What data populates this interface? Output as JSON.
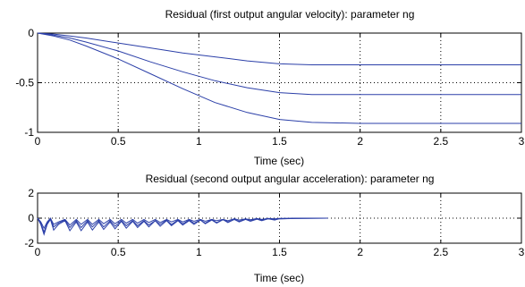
{
  "chart_data": [
    {
      "type": "line",
      "title": "Residual (first output angular velocity): parameter ng",
      "xlabel": "Time (sec)",
      "ylabel": "",
      "xlim": [
        0,
        3
      ],
      "ylim": [
        -1,
        0
      ],
      "xticks": [
        0,
        0.5,
        1,
        1.5,
        2,
        2.5,
        3
      ],
      "xtick_labels": [
        "0",
        "0.5",
        "1",
        "1.5",
        "2",
        "2.5",
        "3"
      ],
      "yticks": [
        -1,
        -0.5,
        0
      ],
      "ytick_labels": [
        "-1",
        "-0.5",
        "0"
      ],
      "grid": true,
      "line_color": "#2b3fa8",
      "series": [
        {
          "x": [
            0,
            0.1,
            0.2,
            0.3,
            0.5,
            0.7,
            0.9,
            1.1,
            1.3,
            1.5,
            1.7,
            2.0,
            2.5,
            3.0
          ],
          "y": [
            0,
            -0.01,
            -0.03,
            -0.05,
            -0.1,
            -0.15,
            -0.2,
            -0.24,
            -0.28,
            -0.31,
            -0.32,
            -0.32,
            -0.32,
            -0.32
          ]
        },
        {
          "x": [
            0,
            0.1,
            0.2,
            0.3,
            0.5,
            0.7,
            0.9,
            1.1,
            1.3,
            1.5,
            1.7,
            2.0,
            2.5,
            3.0
          ],
          "y": [
            0,
            -0.02,
            -0.05,
            -0.09,
            -0.18,
            -0.29,
            -0.39,
            -0.48,
            -0.55,
            -0.6,
            -0.62,
            -0.62,
            -0.62,
            -0.62
          ]
        },
        {
          "x": [
            0,
            0.1,
            0.2,
            0.3,
            0.5,
            0.7,
            0.9,
            1.1,
            1.3,
            1.5,
            1.7,
            2.0,
            2.5,
            3.0
          ],
          "y": [
            0,
            -0.03,
            -0.07,
            -0.13,
            -0.26,
            -0.41,
            -0.56,
            -0.7,
            -0.8,
            -0.87,
            -0.9,
            -0.91,
            -0.91,
            -0.91
          ]
        }
      ]
    },
    {
      "type": "line",
      "title": "Residual (second output  angular acceleration): parameter ng",
      "xlabel": "Time (sec)",
      "ylabel": "",
      "xlim": [
        0,
        3
      ],
      "ylim": [
        -2,
        2
      ],
      "xticks": [
        0,
        0.5,
        1,
        1.5,
        2,
        2.5,
        3
      ],
      "xtick_labels": [
        "0",
        "0.5",
        "1",
        "1.5",
        "2",
        "2.5",
        "3"
      ],
      "yticks": [
        -2,
        0,
        2
      ],
      "ytick_labels": [
        "-2",
        "0",
        "2"
      ],
      "grid": true,
      "line_color": "#2b3fa8",
      "series": [
        {
          "x": [
            0,
            0.02,
            0.04,
            0.06,
            0.08,
            0.1,
            0.13,
            0.17,
            0.2,
            0.24,
            0.27,
            0.31,
            0.34,
            0.38,
            0.41,
            0.45,
            0.48,
            0.52,
            0.55,
            0.59,
            0.62,
            0.66,
            0.69,
            0.73,
            0.76,
            0.8,
            0.83,
            0.87,
            0.9,
            0.94,
            0.97,
            1.01,
            1.04,
            1.08,
            1.11,
            1.15,
            1.18,
            1.22,
            1.25,
            1.29,
            1.32,
            1.36,
            1.39,
            1.43,
            1.47,
            1.5,
            1.6,
            1.8
          ],
          "y": [
            0,
            -0.3,
            -0.8,
            -0.3,
            0.0,
            -0.5,
            -0.3,
            -0.1,
            -0.55,
            -0.1,
            -0.5,
            -0.1,
            -0.5,
            -0.1,
            -0.45,
            -0.1,
            -0.45,
            -0.1,
            -0.4,
            -0.1,
            -0.4,
            -0.1,
            -0.35,
            -0.1,
            -0.35,
            -0.1,
            -0.3,
            -0.1,
            -0.3,
            -0.1,
            -0.25,
            -0.1,
            -0.25,
            -0.1,
            -0.2,
            -0.1,
            -0.2,
            -0.05,
            -0.15,
            -0.05,
            -0.12,
            -0.03,
            -0.1,
            -0.02,
            -0.05,
            -0.02,
            0,
            0
          ]
        },
        {
          "x": [
            0,
            0.02,
            0.04,
            0.06,
            0.08,
            0.1,
            0.13,
            0.17,
            0.2,
            0.24,
            0.27,
            0.31,
            0.34,
            0.38,
            0.41,
            0.45,
            0.48,
            0.52,
            0.55,
            0.59,
            0.62,
            0.66,
            0.69,
            0.73,
            0.76,
            0.8,
            0.83,
            0.87,
            0.9,
            0.94,
            0.97,
            1.01,
            1.04,
            1.08,
            1.11,
            1.15,
            1.18,
            1.22,
            1.25,
            1.29,
            1.32,
            1.36,
            1.39,
            1.43,
            1.47,
            1.5,
            1.6,
            1.8
          ],
          "y": [
            0,
            -0.4,
            -1.1,
            -0.4,
            -0.05,
            -0.7,
            -0.4,
            -0.15,
            -0.75,
            -0.2,
            -0.75,
            -0.2,
            -0.7,
            -0.2,
            -0.7,
            -0.2,
            -0.65,
            -0.2,
            -0.6,
            -0.2,
            -0.6,
            -0.2,
            -0.55,
            -0.2,
            -0.5,
            -0.15,
            -0.5,
            -0.15,
            -0.45,
            -0.15,
            -0.4,
            -0.15,
            -0.4,
            -0.1,
            -0.35,
            -0.1,
            -0.3,
            -0.1,
            -0.25,
            -0.08,
            -0.2,
            -0.05,
            -0.15,
            -0.05,
            -0.1,
            -0.05,
            -0.02,
            0
          ]
        },
        {
          "x": [
            0,
            0.02,
            0.04,
            0.06,
            0.08,
            0.1,
            0.13,
            0.17,
            0.2,
            0.24,
            0.27,
            0.31,
            0.34,
            0.38,
            0.41,
            0.45,
            0.48,
            0.52,
            0.55,
            0.59,
            0.62,
            0.66,
            0.69,
            0.73,
            0.76,
            0.8,
            0.83,
            0.87,
            0.9,
            0.94,
            0.97,
            1.01,
            1.04,
            1.08,
            1.11,
            1.15,
            1.18,
            1.22,
            1.25,
            1.29,
            1.32,
            1.36,
            1.39,
            1.43,
            1.47,
            1.5,
            1.6,
            1.8
          ],
          "y": [
            0,
            -0.5,
            -1.3,
            -0.5,
            -0.1,
            -0.95,
            -0.5,
            -0.2,
            -1.0,
            -0.3,
            -1.0,
            -0.3,
            -0.95,
            -0.3,
            -0.9,
            -0.3,
            -0.85,
            -0.25,
            -0.8,
            -0.25,
            -0.75,
            -0.25,
            -0.7,
            -0.2,
            -0.65,
            -0.2,
            -0.6,
            -0.2,
            -0.55,
            -0.2,
            -0.5,
            -0.15,
            -0.45,
            -0.15,
            -0.4,
            -0.12,
            -0.35,
            -0.1,
            -0.3,
            -0.1,
            -0.25,
            -0.08,
            -0.2,
            -0.05,
            -0.15,
            -0.05,
            -0.03,
            0
          ]
        }
      ]
    }
  ]
}
